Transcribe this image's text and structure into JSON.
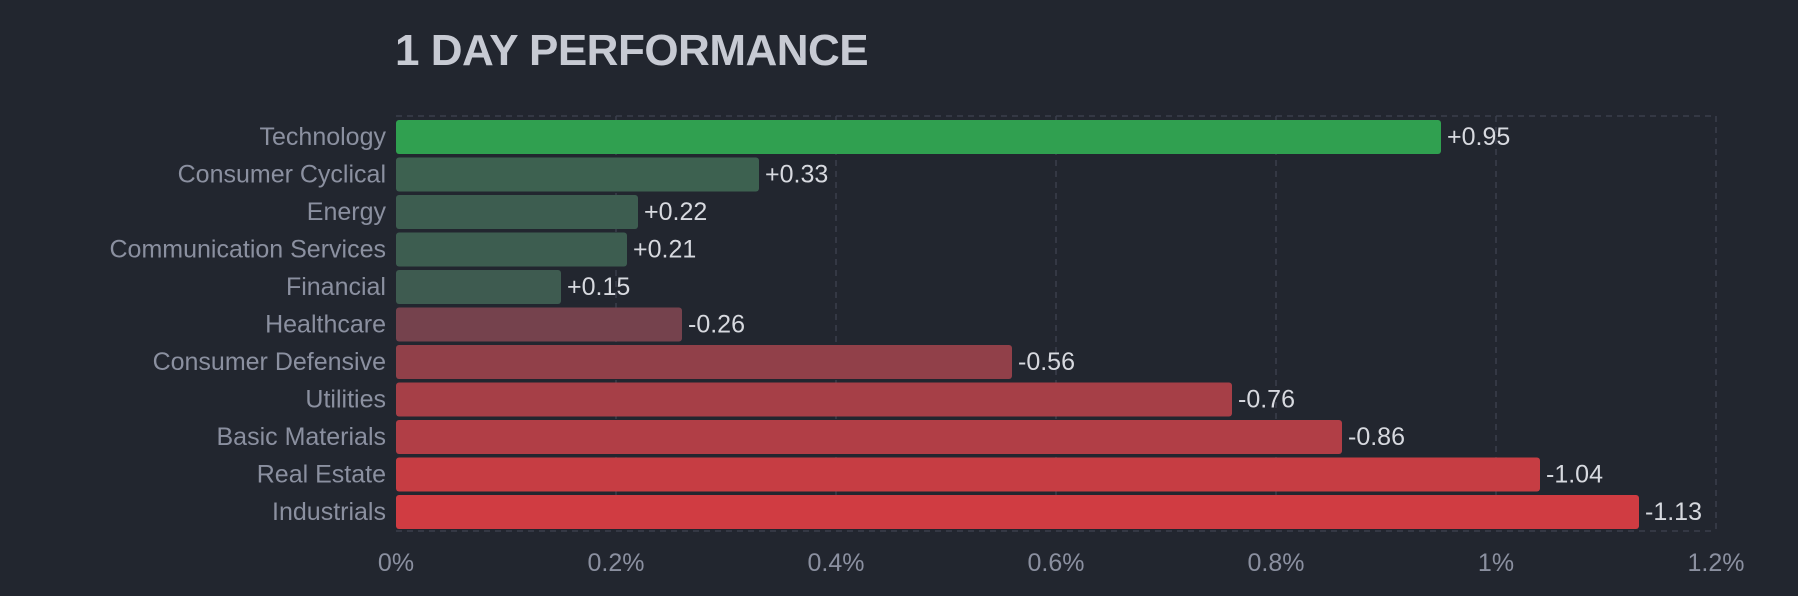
{
  "chart_data": {
    "type": "bar",
    "orientation": "horizontal",
    "title": "1 DAY PERFORMANCE",
    "categories": [
      "Technology",
      "Consumer Cyclical",
      "Energy",
      "Communication Services",
      "Financial",
      "Healthcare",
      "Consumer Defensive",
      "Utilities",
      "Basic Materials",
      "Real Estate",
      "Industrials"
    ],
    "values": [
      0.95,
      0.33,
      0.22,
      0.21,
      0.15,
      -0.26,
      -0.56,
      -0.76,
      -0.86,
      -1.04,
      -1.13
    ],
    "value_labels": [
      "+0.95",
      "+0.33",
      "+0.22",
      "+0.21",
      "+0.15",
      "-0.26",
      "-0.56",
      "-0.76",
      "-0.86",
      "-1.04",
      "-1.13"
    ],
    "bar_magnitude": "absolute value",
    "xlim": [
      0,
      1.2
    ],
    "x_ticks": [
      0,
      0.2,
      0.4,
      0.6,
      0.8,
      1,
      1.2
    ],
    "x_tick_labels": [
      "0%",
      "0.2%",
      "0.4%",
      "0.6%",
      "0.8%",
      "1%",
      "1.2%"
    ],
    "xlabel": "",
    "ylabel": "",
    "grid": true,
    "legend": "none",
    "colors": {
      "background": "#22262f",
      "positive_strong": "#30a050",
      "positive_weak": "#3e5a50",
      "negative_weak": "#62434f",
      "negative_strong": "#d03c42"
    }
  }
}
